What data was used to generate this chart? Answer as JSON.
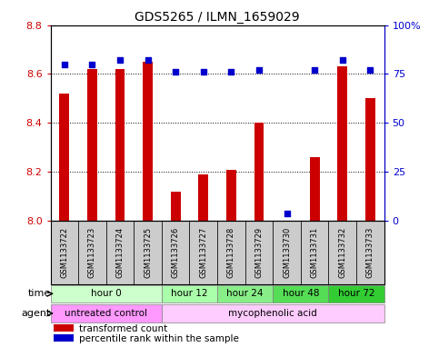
{
  "title": "GDS5265 / ILMN_1659029",
  "samples": [
    "GSM1133722",
    "GSM1133723",
    "GSM1133724",
    "GSM1133725",
    "GSM1133726",
    "GSM1133727",
    "GSM1133728",
    "GSM1133729",
    "GSM1133730",
    "GSM1133731",
    "GSM1133732",
    "GSM1133733"
  ],
  "bar_values": [
    8.52,
    8.62,
    8.62,
    8.65,
    8.12,
    8.19,
    8.21,
    8.4,
    8.0,
    8.26,
    8.63,
    8.5
  ],
  "percentile_values": [
    80,
    80,
    82,
    82,
    76,
    76,
    76,
    77,
    4,
    77,
    82,
    77
  ],
  "ylim_left": [
    8.0,
    8.8
  ],
  "ylim_right": [
    0,
    100
  ],
  "yticks_left": [
    8.0,
    8.2,
    8.4,
    8.6,
    8.8
  ],
  "yticks_right": [
    0,
    25,
    50,
    75,
    100
  ],
  "ytick_labels_right": [
    "0",
    "25",
    "50",
    "75",
    "100%"
  ],
  "bar_color": "#cc0000",
  "percentile_color": "#0000cc",
  "bar_width": 0.35,
  "time_groups": [
    {
      "label": "hour 0",
      "start": 0,
      "end": 4,
      "color": "#ccffcc"
    },
    {
      "label": "hour 12",
      "start": 4,
      "end": 6,
      "color": "#aaffaa"
    },
    {
      "label": "hour 24",
      "start": 6,
      "end": 8,
      "color": "#88ee88"
    },
    {
      "label": "hour 48",
      "start": 8,
      "end": 10,
      "color": "#55dd55"
    },
    {
      "label": "hour 72",
      "start": 10,
      "end": 12,
      "color": "#33cc33"
    }
  ],
  "agent_groups": [
    {
      "label": "untreated control",
      "start": 0,
      "end": 4,
      "color": "#ff99ff"
    },
    {
      "label": "mycophenolic acid",
      "start": 4,
      "end": 12,
      "color": "#ffccff"
    }
  ],
  "legend_bar_label": "transformed count",
  "legend_pct_label": "percentile rank within the sample",
  "row_label_time": "time",
  "row_label_agent": "agent",
  "background_color": "#ffffff",
  "sample_bg_color": "#cccccc",
  "plot_bg_color": "#ffffff",
  "dotted_line_color": "#000000",
  "border_color": "#000000",
  "left_label_color": "#cc0000",
  "right_label_color": "#0000cc"
}
